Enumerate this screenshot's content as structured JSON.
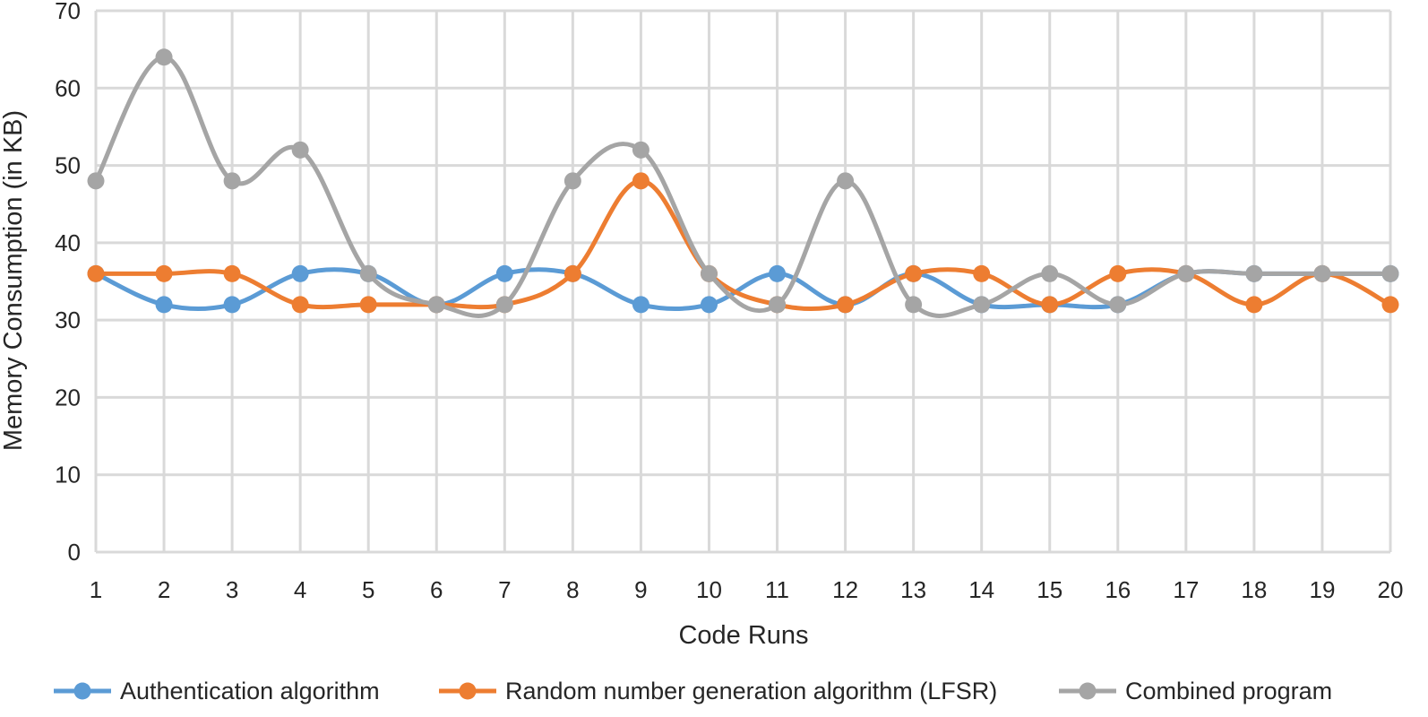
{
  "chart_data": {
    "type": "line",
    "smooth": true,
    "title": "",
    "xlabel": "Code Runs",
    "ylabel": "Memory Consumption (in KB)",
    "x": [
      1,
      2,
      3,
      4,
      5,
      6,
      7,
      8,
      9,
      10,
      11,
      12,
      13,
      14,
      15,
      16,
      17,
      18,
      19,
      20
    ],
    "ylim": [
      0,
      70
    ],
    "yticks": [
      0,
      10,
      20,
      30,
      40,
      50,
      60,
      70
    ],
    "grid": true,
    "legend_position": "bottom",
    "series": [
      {
        "name": "Authentication algorithm",
        "color": "#5b9bd5",
        "values": [
          36,
          32,
          32,
          36,
          36,
          32,
          36,
          36,
          32,
          32,
          36,
          32,
          36,
          32,
          32,
          32,
          36,
          36,
          36,
          36
        ]
      },
      {
        "name": "Random number generation algorithm (LFSR)",
        "color": "#ed7d31",
        "values": [
          36,
          36,
          36,
          32,
          32,
          32,
          32,
          36,
          48,
          36,
          32,
          32,
          36,
          36,
          32,
          36,
          36,
          32,
          36,
          32
        ]
      },
      {
        "name": "Combined program",
        "color": "#a5a5a5",
        "values": [
          48,
          64,
          48,
          52,
          36,
          32,
          32,
          48,
          52,
          36,
          32,
          48,
          32,
          32,
          36,
          32,
          36,
          36,
          36,
          36
        ]
      }
    ]
  }
}
